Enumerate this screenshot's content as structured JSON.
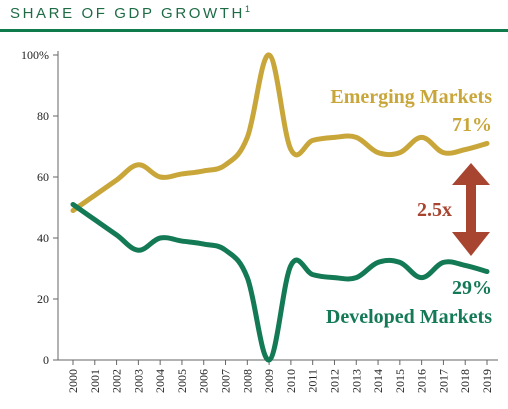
{
  "header": {
    "title": "SHARE OF GDP GROWTH",
    "footnote_marker": "1"
  },
  "colors": {
    "emerging": "#c9a63a",
    "developed": "#137a55",
    "arrow": "#a84530",
    "rule": "#0f7a4c"
  },
  "annotations": {
    "emerging_label": "Emerging Markets",
    "emerging_value": "71%",
    "developed_label": "Developed Markets",
    "developed_value": "29%",
    "gap_label": "2.5x"
  },
  "chart_data": {
    "type": "line",
    "title": "SHARE OF GDP GROWTH",
    "x": [
      "2000",
      "2001",
      "2002",
      "2003",
      "2004",
      "2005",
      "2006",
      "2007",
      "2008",
      "2009",
      "2010",
      "2011",
      "2012",
      "2013",
      "2014",
      "2015",
      "2016",
      "2017",
      "2018",
      "2019"
    ],
    "y_ticks": [
      "0",
      "20",
      "40",
      "60",
      "80",
      "100%"
    ],
    "ylim": [
      0,
      100
    ],
    "grid": false,
    "series": [
      {
        "name": "Emerging Markets",
        "values": [
          49,
          54,
          59,
          64,
          60,
          61,
          62,
          64,
          73,
          100,
          69,
          72,
          73,
          73,
          68,
          68,
          73,
          68,
          69,
          71
        ]
      },
      {
        "name": "Developed Markets",
        "values": [
          51,
          46,
          41,
          36,
          40,
          39,
          38,
          36,
          27,
          0,
          31,
          28,
          27,
          27,
          32,
          32,
          27,
          32,
          31,
          29
        ]
      }
    ]
  }
}
